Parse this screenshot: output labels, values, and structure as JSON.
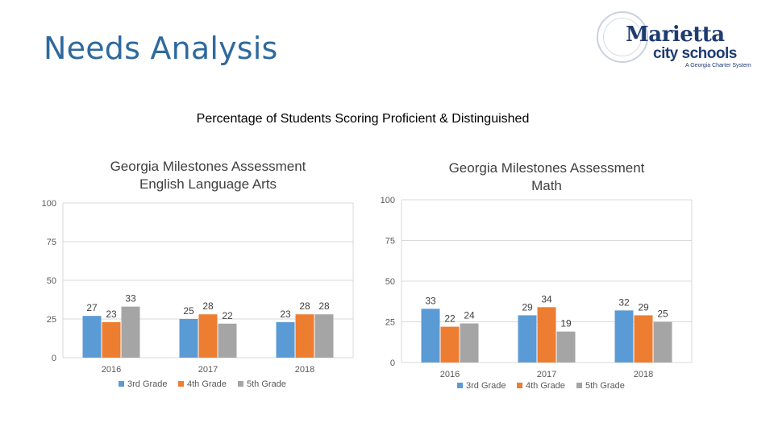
{
  "slide": {
    "title": "Needs Analysis",
    "subtitle": "Percentage of Students Scoring Proficient & Distinguished"
  },
  "logo": {
    "name": "Marietta",
    "sub": "city schools",
    "tagline": "A Georgia Charter System"
  },
  "colors": {
    "grade3": "#5b9bd5",
    "grade4": "#ed7d31",
    "grade5": "#a5a5a5"
  },
  "chart_data": [
    {
      "id": "ela",
      "type": "bar",
      "title": [
        "Georgia Milestones Assessment",
        "English Language Arts"
      ],
      "categories": [
        "2016",
        "2017",
        "2018"
      ],
      "series": [
        {
          "name": "3rd Grade",
          "values": [
            27,
            25,
            23
          ]
        },
        {
          "name": "4th Grade",
          "values": [
            23,
            28,
            28
          ]
        },
        {
          "name": "5th Grade",
          "values": [
            33,
            22,
            28
          ]
        }
      ],
      "ylim": [
        0,
        100
      ],
      "yticks": [
        0,
        25,
        50,
        75,
        100
      ],
      "legend": "bottom",
      "grid": true
    },
    {
      "id": "math",
      "type": "bar",
      "title": [
        "Georgia Milestones Assessment",
        "Math"
      ],
      "categories": [
        "2016",
        "2017",
        "2018"
      ],
      "series": [
        {
          "name": "3rd Grade",
          "values": [
            33,
            29,
            32
          ]
        },
        {
          "name": "4th Grade",
          "values": [
            22,
            34,
            29
          ]
        },
        {
          "name": "5th Grade",
          "values": [
            24,
            19,
            25
          ]
        }
      ],
      "ylim": [
        0,
        100
      ],
      "yticks": [
        0,
        25,
        50,
        75,
        100
      ],
      "legend": "bottom",
      "grid": true
    }
  ]
}
